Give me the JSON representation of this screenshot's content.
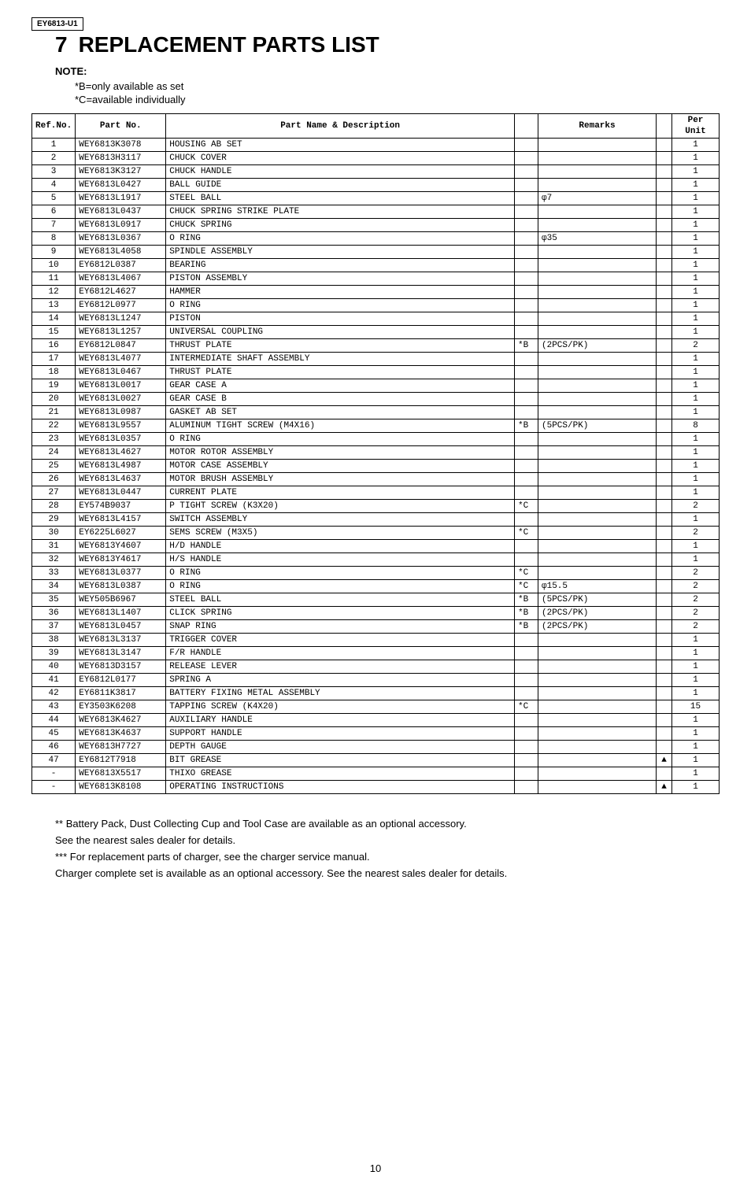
{
  "header": {
    "model": "EY6813-U1",
    "section_number": "7",
    "section_title": "REPLACEMENT PARTS LIST",
    "note_label": "NOTE:",
    "note_b": "*B=only available as set",
    "note_c": "*C=available individually"
  },
  "table": {
    "columns": {
      "ref": "Ref.No.",
      "part": "Part No.",
      "name": "Part Name & Description",
      "remarks": "Remarks",
      "unit": "Per Unit"
    },
    "rows": [
      {
        "ref": "1",
        "part": "WEY6813K3078",
        "name": "HOUSING AB SET",
        "mark": "",
        "rem": "",
        "sym": "",
        "unit": "1"
      },
      {
        "ref": "2",
        "part": "WEY6813H3117",
        "name": "CHUCK COVER",
        "mark": "",
        "rem": "",
        "sym": "",
        "unit": "1"
      },
      {
        "ref": "3",
        "part": "WEY6813K3127",
        "name": "CHUCK HANDLE",
        "mark": "",
        "rem": "",
        "sym": "",
        "unit": "1"
      },
      {
        "ref": "4",
        "part": "WEY6813L0427",
        "name": "BALL GUIDE",
        "mark": "",
        "rem": "",
        "sym": "",
        "unit": "1"
      },
      {
        "ref": "5",
        "part": "WEY6813L1917",
        "name": "STEEL BALL",
        "mark": "",
        "rem": "φ7",
        "sym": "",
        "unit": "1"
      },
      {
        "ref": "6",
        "part": "WEY6813L0437",
        "name": "CHUCK SPRING STRIKE PLATE",
        "mark": "",
        "rem": "",
        "sym": "",
        "unit": "1"
      },
      {
        "ref": "7",
        "part": "WEY6813L0917",
        "name": "CHUCK SPRING",
        "mark": "",
        "rem": "",
        "sym": "",
        "unit": "1"
      },
      {
        "ref": "8",
        "part": "WEY6813L0367",
        "name": "O RING",
        "mark": "",
        "rem": "φ35",
        "sym": "",
        "unit": "1"
      },
      {
        "ref": "9",
        "part": "WEY6813L4058",
        "name": "SPINDLE ASSEMBLY",
        "mark": "",
        "rem": "",
        "sym": "",
        "unit": "1"
      },
      {
        "ref": "10",
        "part": "EY6812L0387",
        "name": "BEARING",
        "mark": "",
        "rem": "",
        "sym": "",
        "unit": "1"
      },
      {
        "ref": "11",
        "part": "WEY6813L4067",
        "name": "PISTON ASSEMBLY",
        "mark": "",
        "rem": "",
        "sym": "",
        "unit": "1"
      },
      {
        "ref": "12",
        "part": "EY6812L4627",
        "name": "HAMMER",
        "mark": "",
        "rem": "",
        "sym": "",
        "unit": "1"
      },
      {
        "ref": "13",
        "part": "EY6812L0977",
        "name": "O RING",
        "mark": "",
        "rem": "",
        "sym": "",
        "unit": "1"
      },
      {
        "ref": "14",
        "part": "WEY6813L1247",
        "name": "PISTON",
        "mark": "",
        "rem": "",
        "sym": "",
        "unit": "1"
      },
      {
        "ref": "15",
        "part": "WEY6813L1257",
        "name": "UNIVERSAL COUPLING",
        "mark": "",
        "rem": "",
        "sym": "",
        "unit": "1"
      },
      {
        "ref": "16",
        "part": "EY6812L0847",
        "name": "THRUST PLATE",
        "mark": "*B",
        "rem": "(2PCS/PK)",
        "sym": "",
        "unit": "2"
      },
      {
        "ref": "17",
        "part": "WEY6813L4077",
        "name": "INTERMEDIATE SHAFT ASSEMBLY",
        "mark": "",
        "rem": "",
        "sym": "",
        "unit": "1"
      },
      {
        "ref": "18",
        "part": "WEY6813L0467",
        "name": "THRUST PLATE",
        "mark": "",
        "rem": "",
        "sym": "",
        "unit": "1"
      },
      {
        "ref": "19",
        "part": "WEY6813L0017",
        "name": "GEAR CASE A",
        "mark": "",
        "rem": "",
        "sym": "",
        "unit": "1"
      },
      {
        "ref": "20",
        "part": "WEY6813L0027",
        "name": "GEAR CASE B",
        "mark": "",
        "rem": "",
        "sym": "",
        "unit": "1"
      },
      {
        "ref": "21",
        "part": "WEY6813L0987",
        "name": "GASKET AB SET",
        "mark": "",
        "rem": "",
        "sym": "",
        "unit": "1"
      },
      {
        "ref": "22",
        "part": "WEY6813L9557",
        "name": "ALUMINUM TIGHT SCREW (M4X16)",
        "mark": "*B",
        "rem": "(5PCS/PK)",
        "sym": "",
        "unit": "8"
      },
      {
        "ref": "23",
        "part": "WEY6813L0357",
        "name": "O RING",
        "mark": "",
        "rem": "",
        "sym": "",
        "unit": "1"
      },
      {
        "ref": "24",
        "part": "WEY6813L4627",
        "name": "MOTOR ROTOR ASSEMBLY",
        "mark": "",
        "rem": "",
        "sym": "",
        "unit": "1"
      },
      {
        "ref": "25",
        "part": "WEY6813L4987",
        "name": "MOTOR CASE ASSEMBLY",
        "mark": "",
        "rem": "",
        "sym": "",
        "unit": "1"
      },
      {
        "ref": "26",
        "part": "WEY6813L4637",
        "name": "MOTOR BRUSH ASSEMBLY",
        "mark": "",
        "rem": "",
        "sym": "",
        "unit": "1"
      },
      {
        "ref": "27",
        "part": "WEY6813L0447",
        "name": "CURRENT PLATE",
        "mark": "",
        "rem": "",
        "sym": "",
        "unit": "1"
      },
      {
        "ref": "28",
        "part": "EY574B9037",
        "name": "P TIGHT SCREW (K3X20)",
        "mark": "*C",
        "rem": "",
        "sym": "",
        "unit": "2"
      },
      {
        "ref": "29",
        "part": "WEY6813L4157",
        "name": "SWITCH ASSEMBLY",
        "mark": "",
        "rem": "",
        "sym": "",
        "unit": "1"
      },
      {
        "ref": "30",
        "part": "EY6225L6027",
        "name": "SEMS SCREW (M3X5)",
        "mark": "*C",
        "rem": "",
        "sym": "",
        "unit": "2"
      },
      {
        "ref": "31",
        "part": "WEY6813Y4607",
        "name": "H/D HANDLE",
        "mark": "",
        "rem": "",
        "sym": "",
        "unit": "1"
      },
      {
        "ref": "32",
        "part": "WEY6813Y4617",
        "name": "H/S HANDLE",
        "mark": "",
        "rem": "",
        "sym": "",
        "unit": "1"
      },
      {
        "ref": "33",
        "part": "WEY6813L0377",
        "name": "O RING",
        "mark": "*C",
        "rem": "",
        "sym": "",
        "unit": "2"
      },
      {
        "ref": "34",
        "part": "WEY6813L0387",
        "name": "O RING",
        "mark": "*C",
        "rem": "φ15.5",
        "sym": "",
        "unit": "2"
      },
      {
        "ref": "35",
        "part": "WEY505B6967",
        "name": "STEEL BALL",
        "mark": "*B",
        "rem": "(5PCS/PK)",
        "sym": "",
        "unit": "2"
      },
      {
        "ref": "36",
        "part": "WEY6813L1407",
        "name": "CLICK SPRING",
        "mark": "*B",
        "rem": "(2PCS/PK)",
        "sym": "",
        "unit": "2"
      },
      {
        "ref": "37",
        "part": "WEY6813L0457",
        "name": "SNAP RING",
        "mark": "*B",
        "rem": "(2PCS/PK)",
        "sym": "",
        "unit": "2"
      },
      {
        "ref": "38",
        "part": "WEY6813L3137",
        "name": "TRIGGER COVER",
        "mark": "",
        "rem": "",
        "sym": "",
        "unit": "1"
      },
      {
        "ref": "39",
        "part": "WEY6813L3147",
        "name": "F/R HANDLE",
        "mark": "",
        "rem": "",
        "sym": "",
        "unit": "1"
      },
      {
        "ref": "40",
        "part": "WEY6813D3157",
        "name": "RELEASE LEVER",
        "mark": "",
        "rem": "",
        "sym": "",
        "unit": "1"
      },
      {
        "ref": "41",
        "part": "EY6812L0177",
        "name": "SPRING A",
        "mark": "",
        "rem": "",
        "sym": "",
        "unit": "1"
      },
      {
        "ref": "42",
        "part": "EY6811K3817",
        "name": "BATTERY FIXING METAL ASSEMBLY",
        "mark": "",
        "rem": "",
        "sym": "",
        "unit": "1"
      },
      {
        "ref": "43",
        "part": "EY3503K6208",
        "name": "TAPPING SCREW (K4X20)",
        "mark": "*C",
        "rem": "",
        "sym": "",
        "unit": "15"
      },
      {
        "ref": "44",
        "part": "WEY6813K4627",
        "name": "AUXILIARY HANDLE",
        "mark": "",
        "rem": "",
        "sym": "",
        "unit": "1"
      },
      {
        "ref": "45",
        "part": "WEY6813K4637",
        "name": "SUPPORT HANDLE",
        "mark": "",
        "rem": "",
        "sym": "",
        "unit": "1"
      },
      {
        "ref": "46",
        "part": "WEY6813H7727",
        "name": "DEPTH GAUGE",
        "mark": "",
        "rem": "",
        "sym": "",
        "unit": "1"
      },
      {
        "ref": "47",
        "part": "EY6812T7918",
        "name": "BIT GREASE",
        "mark": "",
        "rem": "",
        "sym": "▲",
        "unit": "1"
      },
      {
        "ref": "-",
        "part": "WEY6813X5517",
        "name": "THIXO GREASE",
        "mark": "",
        "rem": "",
        "sym": "",
        "unit": "1"
      },
      {
        "ref": "-",
        "part": "WEY6813K8108",
        "name": "OPERATING INSTRUCTIONS",
        "mark": "",
        "rem": "",
        "sym": "▲",
        "unit": "1"
      }
    ]
  },
  "footnotes": {
    "l1": "** Battery Pack, Dust Collecting Cup and Tool Case are available as an optional accessory.",
    "l2": "See the nearest sales dealer for details.",
    "l3": "*** For replacement parts of charger, see the charger service manual.",
    "l4": "Charger complete set is available as an optional accessory. See the nearest sales dealer for details."
  },
  "page_number": "10"
}
